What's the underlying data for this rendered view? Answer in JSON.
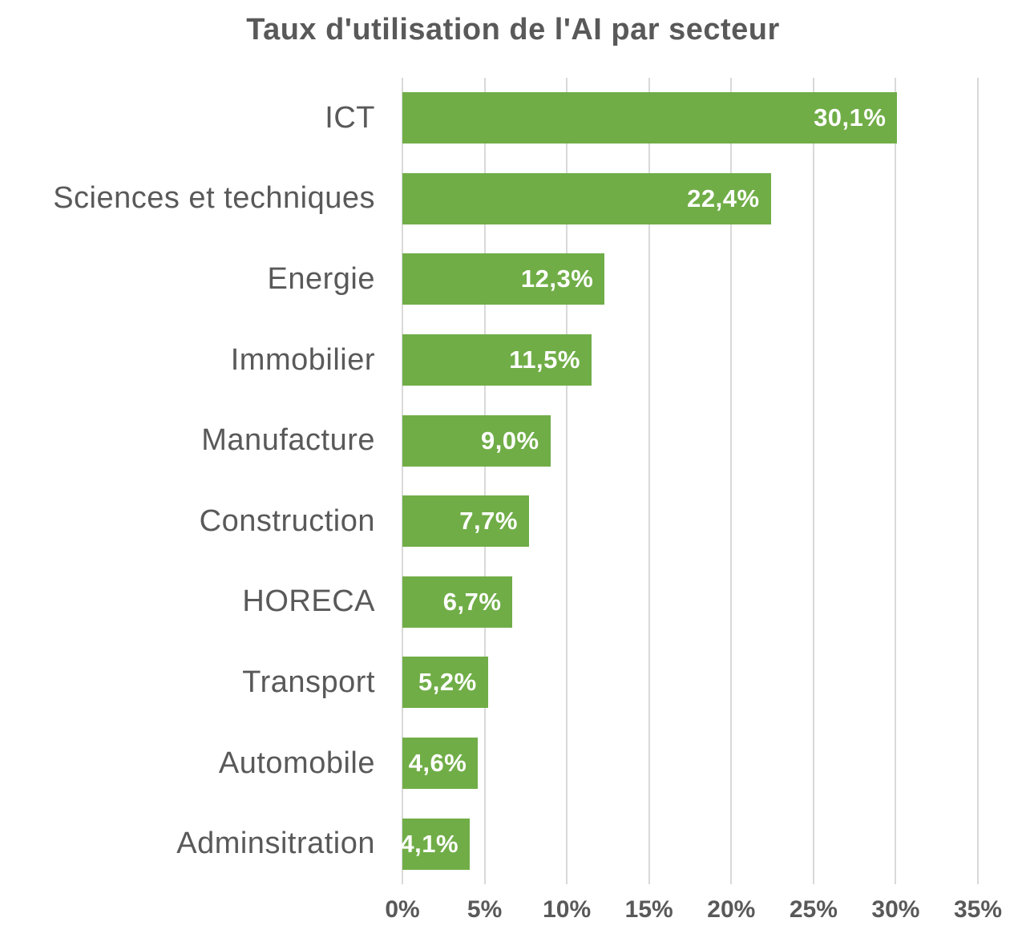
{
  "chart_data": {
    "type": "bar",
    "orientation": "horizontal",
    "title": "Taux d'utilisation de l'AI par secteur",
    "categories": [
      "ICT",
      "Sciences et techniques",
      "Energie",
      "Immobilier",
      "Manufacture",
      "Construction",
      "HORECA",
      "Transport",
      "Automobile",
      "Adminsitration"
    ],
    "values": [
      30.1,
      22.4,
      12.3,
      11.5,
      9.0,
      7.7,
      6.7,
      5.2,
      4.6,
      4.1
    ],
    "value_labels": [
      "30,1%",
      "22,4%",
      "12,3%",
      "11,5%",
      "9,0%",
      "7,7%",
      "6,7%",
      "5,2%",
      "4,6%",
      "4,1%"
    ],
    "x_ticks": [
      "0%",
      "5%",
      "10%",
      "15%",
      "20%",
      "25%",
      "30%",
      "35%"
    ],
    "xlim": [
      0,
      35
    ],
    "grid": "vertical-gridlines-on",
    "legend": "none",
    "colors": {
      "bar": "#70AD47",
      "text": "#595959",
      "value_label": "#FFFFFF",
      "gridline": "#D9D9D9",
      "background": "#FFFFFF"
    }
  }
}
